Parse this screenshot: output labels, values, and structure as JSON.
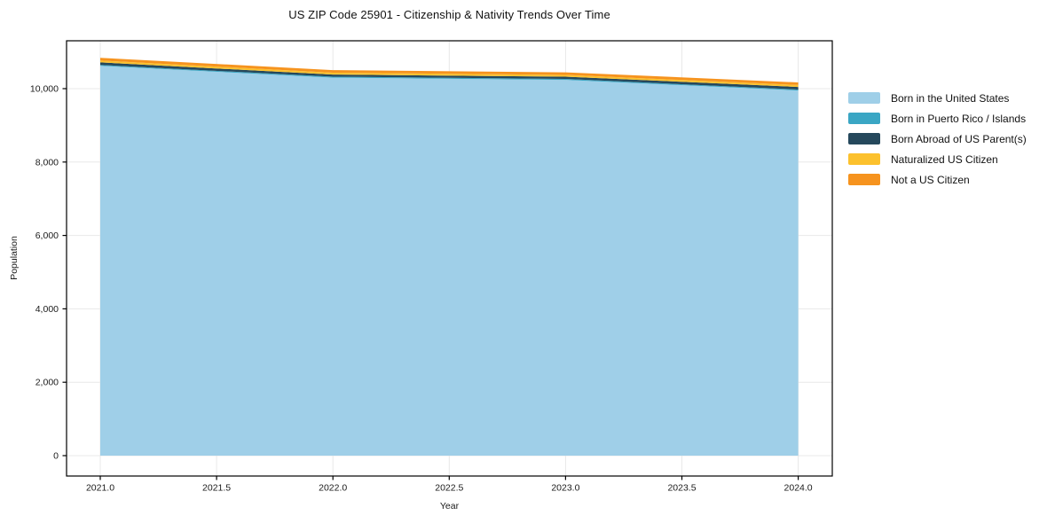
{
  "chart_data": {
    "type": "area",
    "stacked": true,
    "title": "US ZIP Code 25901 - Citizenship & Nativity Trends Over Time",
    "xlabel": "Year",
    "ylabel": "Population",
    "x": [
      2021,
      2022,
      2023,
      2024
    ],
    "series": [
      {
        "name": "Born in the United States",
        "color": "#9fcfe8",
        "values": [
          10620,
          10300,
          10240,
          9950
        ]
      },
      {
        "name": "Born in Puerto Rico / Islands",
        "color": "#3aa6c4",
        "values": [
          25,
          25,
          25,
          25
        ]
      },
      {
        "name": "Born Abroad of US Parent(s)",
        "color": "#25485c",
        "values": [
          70,
          60,
          60,
          70
        ]
      },
      {
        "name": "Naturalized US Citizen",
        "color": "#fcc12d",
        "values": [
          50,
          50,
          50,
          55
        ]
      },
      {
        "name": "Not a US Citizen",
        "color": "#f6931e",
        "values": [
          75,
          70,
          70,
          70
        ]
      }
    ],
    "totals": [
      10840,
      10505,
      10445,
      10170
    ],
    "x_ticks": {
      "values": [
        2021.0,
        2021.5,
        2022.0,
        2022.5,
        2023.0,
        2023.5,
        2024.0
      ],
      "labels": [
        "2021.0",
        "2021.5",
        "2022.0",
        "2022.5",
        "2023.0",
        "2023.5",
        "2024.0"
      ]
    },
    "y_ticks": {
      "values": [
        0,
        2000,
        4000,
        6000,
        8000,
        10000
      ],
      "labels": [
        "0",
        "2,000",
        "4,000",
        "6,000",
        "8,000",
        "10,000"
      ]
    },
    "xlim": [
      2020.86,
      2024.15
    ],
    "ylim": [
      -555,
      11300
    ],
    "grid": true,
    "legend_position": "right",
    "colors": {
      "grid": "#e8e8e8",
      "spine": "#000000",
      "tick_text": "#1a1a1a",
      "background": "#ffffff"
    }
  }
}
